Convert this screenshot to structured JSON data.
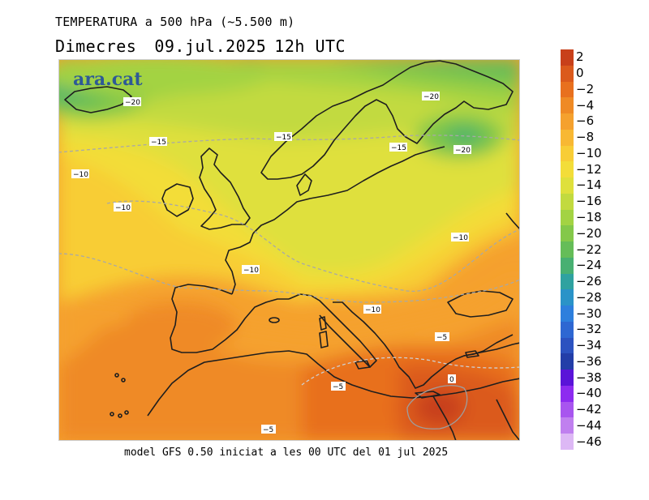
{
  "title": {
    "line1": "TEMPERATURA a 500 hPa (~5.500 m)",
    "day": "Dimecres",
    "date": "09.jul.2025",
    "time": "12h UTC"
  },
  "logo": "ara.cat",
  "footer": "model GFS 0.50 iniciat a les 00 UTC del 01 jul 2025",
  "colorbar": {
    "labels": [
      "2",
      "0",
      "−2",
      "−4",
      "−6",
      "−8",
      "−10",
      "−12",
      "−14",
      "−16",
      "−18",
      "−20",
      "−22",
      "−24",
      "−26",
      "−28",
      "−30",
      "−32",
      "−34",
      "−36",
      "−38",
      "−40",
      "−42",
      "−44",
      "−46"
    ],
    "colors": [
      "#c8401a",
      "#db5a1c",
      "#e8701e",
      "#ef8a25",
      "#f5a12e",
      "#f8b833",
      "#f8cd36",
      "#f3dd39",
      "#dfe03c",
      "#c2da3f",
      "#a3d343",
      "#84c84a",
      "#65bd58",
      "#48b072",
      "#2fa2a0",
      "#2a93c8",
      "#2d7fdd",
      "#2e67d2",
      "#2c52c0",
      "#233ea8",
      "#5a14d8",
      "#8d2bf0",
      "#a855ef",
      "#c080ef",
      "#ddb8f5"
    ]
  },
  "contour_labels": [
    {
      "text": "−20"
    },
    {
      "text": "−15"
    },
    {
      "text": "−15"
    },
    {
      "text": "−20"
    },
    {
      "text": "−15"
    },
    {
      "text": "−20"
    },
    {
      "text": "−10"
    },
    {
      "text": "−10"
    },
    {
      "text": "−10"
    },
    {
      "text": "−10"
    },
    {
      "text": "−10"
    },
    {
      "text": "−5"
    },
    {
      "text": "−5"
    },
    {
      "text": "0"
    },
    {
      "text": "−5"
    }
  ]
}
